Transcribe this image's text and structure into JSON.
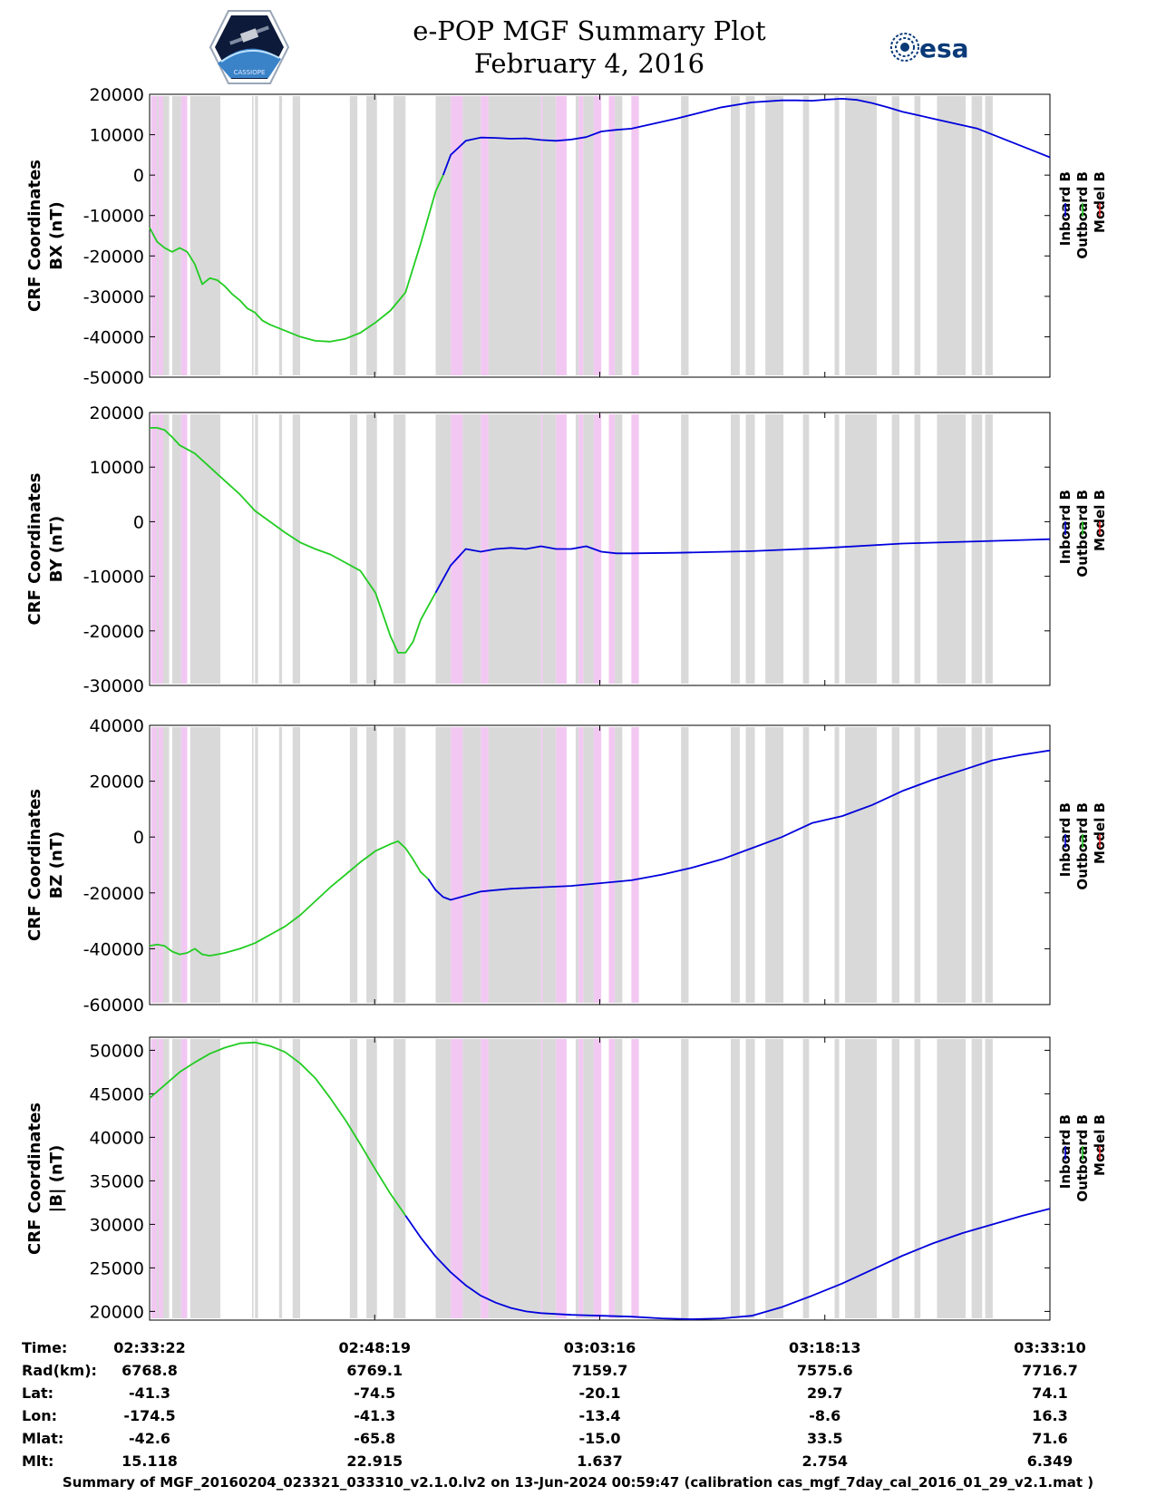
{
  "header": {
    "title_line1": "e-POP MGF Summary Plot",
    "title_line2": "February 4, 2016",
    "logo_left_icon": "cassiope-mission-patch-icon",
    "logo_right_text": "esa",
    "logo_right_icon": "esa-logo-icon"
  },
  "legend": {
    "inboard": "Inboard B",
    "outboard": "Outboard B",
    "model": "Model B",
    "colors": {
      "inboard": "#0000dd",
      "outboard": "#22cc22",
      "model": "#ee2222"
    }
  },
  "colors": {
    "gap_gray": "#d9d9d9",
    "gap_pink": "#f2c8f2",
    "axis": "#000000"
  },
  "footer": {
    "text": "Summary of MGF_20160204_023321_033310_v2.1.0.lv2 on 13-Jun-2024 00:59:47 (calibration cas_mgf_7day_cal_2016_01_29_v2.1.mat )"
  },
  "chart_data": {
    "type": "line",
    "x_range_min": [
      0,
      59.8
    ],
    "shading_min": {
      "gray": [
        [
          0.1,
          1.3
        ],
        [
          1.5,
          2.1
        ],
        [
          2.7,
          4.7
        ],
        [
          6.8,
          6.9
        ],
        [
          7.0,
          7.2
        ],
        [
          8.6,
          8.8
        ],
        [
          9.5,
          10.0
        ],
        [
          13.3,
          13.8
        ],
        [
          14.4,
          15.1
        ],
        [
          16.2,
          17.0
        ],
        [
          19.0,
          20.0
        ],
        [
          20.8,
          22.0
        ],
        [
          22.5,
          26.0
        ],
        [
          26.1,
          27.0
        ],
        [
          28.3,
          28.5
        ],
        [
          28.8,
          29.5
        ],
        [
          30.9,
          31.4
        ],
        [
          35.3,
          35.8
        ],
        [
          38.6,
          39.2
        ],
        [
          39.6,
          40.2
        ],
        [
          40.9,
          42.1
        ],
        [
          43.4,
          43.8
        ],
        [
          45.5,
          45.8
        ],
        [
          46.2,
          48.3
        ],
        [
          49.3,
          49.8
        ],
        [
          50.8,
          51.2
        ],
        [
          52.3,
          54.2
        ],
        [
          54.6,
          55.3
        ],
        [
          55.5,
          56.0
        ]
      ],
      "pink": [
        [
          0.1,
          0.5
        ],
        [
          0.6,
          0.9
        ],
        [
          2.1,
          2.5
        ],
        [
          20.0,
          20.8
        ],
        [
          22.0,
          22.5
        ],
        [
          26.0,
          26.1
        ],
        [
          27.0,
          27.7
        ],
        [
          28.5,
          28.8
        ],
        [
          29.5,
          30.0
        ],
        [
          30.5,
          30.9
        ],
        [
          32.0,
          32.5
        ]
      ]
    },
    "panels": [
      {
        "ylabel_line1": "CRF Coordinates",
        "ylabel_line2": "BX (nT)",
        "ylim": [
          -50000,
          20000
        ],
        "yticks": [
          20000,
          10000,
          0,
          -10000,
          -20000,
          -30000,
          -40000,
          -50000
        ],
        "series": [
          {
            "name": "Outboard B",
            "x": [
              0,
              0.5,
              1,
              1.5,
              2,
              2.5,
              3,
              3.5,
              4,
              4.5,
              5,
              5.5,
              6,
              6.5,
              7,
              7.5,
              8,
              9,
              10,
              11,
              12,
              13,
              14,
              15,
              16,
              17,
              18,
              19,
              19.5
            ],
            "y": [
              -13000,
              -16500,
              -18000,
              -19000,
              -18000,
              -19000,
              -22000,
              -27000,
              -25500,
              -26000,
              -27500,
              -29500,
              -31000,
              -33000,
              -34000,
              -36000,
              -37000,
              -38500,
              -40000,
              -41000,
              -41200,
              -40500,
              -39000,
              -36500,
              -33500,
              -29000,
              -17000,
              -4000,
              0
            ]
          },
          {
            "name": "Inboard B",
            "x": [
              19.5,
              20,
              21,
              22,
              23,
              24,
              25,
              26,
              27,
              28,
              29,
              30,
              31,
              32,
              35,
              38,
              40,
              42,
              43,
              44,
              45,
              46,
              47,
              48,
              49,
              50,
              52,
              55,
              59.8
            ],
            "y": [
              0,
              5000,
              8500,
              9300,
              9200,
              9000,
              9100,
              8700,
              8500,
              8800,
              9400,
              10800,
              11200,
              11500,
              14000,
              16800,
              18000,
              18500,
              18500,
              18400,
              18700,
              18900,
              18600,
              17800,
              16800,
              15700,
              14000,
              11500,
              4400
            ]
          }
        ]
      },
      {
        "ylabel_line1": "CRF Coordinates",
        "ylabel_line2": "BY (nT)",
        "ylim": [
          -30000,
          20000
        ],
        "yticks": [
          20000,
          10000,
          0,
          -10000,
          -20000,
          -30000
        ],
        "series": [
          {
            "name": "Outboard B",
            "x": [
              0,
              0.5,
              1,
              1.5,
              2,
              3,
              4,
              5,
              6,
              7,
              8,
              9,
              10,
              11,
              12,
              13,
              14,
              15,
              15.5,
              16,
              16.5,
              17,
              17.5,
              18,
              18.5,
              19
            ],
            "y": [
              17200,
              17200,
              16800,
              15500,
              14000,
              12500,
              10000,
              7500,
              5000,
              2000,
              0,
              -2000,
              -3800,
              -5000,
              -6000,
              -7500,
              -9000,
              -13000,
              -17000,
              -21000,
              -24000,
              -24000,
              -22000,
              -18000,
              -15500,
              -13000
            ]
          },
          {
            "name": "Inboard B",
            "x": [
              19,
              20,
              21,
              22,
              23,
              24,
              25,
              26,
              27,
              28,
              29,
              30,
              31,
              32,
              35,
              40,
              45,
              50,
              55,
              59.8
            ],
            "y": [
              -13000,
              -8000,
              -5000,
              -5500,
              -5000,
              -4800,
              -5000,
              -4500,
              -5000,
              -5000,
              -4500,
              -5500,
              -5800,
              -5800,
              -5700,
              -5400,
              -4800,
              -4000,
              -3600,
              -3200
            ]
          }
        ]
      },
      {
        "ylabel_line1": "CRF Coordinates",
        "ylabel_line2": "BZ (nT)",
        "ylim": [
          -60000,
          40000
        ],
        "yticks": [
          40000,
          20000,
          0,
          -20000,
          -40000,
          -60000
        ],
        "series": [
          {
            "name": "Outboard B",
            "x": [
              0,
              0.5,
              1,
              1.5,
              2,
              2.5,
              3,
              3.5,
              4,
              4.5,
              5,
              6,
              7,
              8,
              9,
              10,
              11,
              12,
              13,
              14,
              15,
              16,
              16.5,
              17,
              17.5,
              18,
              18.5
            ],
            "y": [
              -39000,
              -38500,
              -39000,
              -41000,
              -42000,
              -41500,
              -40000,
              -42000,
              -42500,
              -42000,
              -41500,
              -40000,
              -38000,
              -35000,
              -32000,
              -28000,
              -23000,
              -18000,
              -13500,
              -9000,
              -5000,
              -2500,
              -1500,
              -4000,
              -8000,
              -12500,
              -15000
            ]
          },
          {
            "name": "Inboard B",
            "x": [
              18.5,
              19,
              19.5,
              20,
              21,
              22,
              23,
              24,
              26,
              28,
              30,
              32,
              34,
              36,
              38,
              40,
              42,
              44,
              46,
              48,
              50,
              52,
              54,
              56,
              58,
              59.8
            ],
            "y": [
              -15000,
              -19000,
              -21500,
              -22500,
              -21000,
              -19500,
              -19000,
              -18500,
              -18000,
              -17500,
              -16500,
              -15500,
              -13500,
              -11000,
              -8000,
              -4000,
              0,
              5000,
              7500,
              11500,
              16500,
              20500,
              24000,
              27500,
              29500,
              31000
            ]
          }
        ]
      },
      {
        "ylabel_line1": "CRF Coordinates",
        "ylabel_line2": "|B| (nT)",
        "ylim": [
          19000,
          51500
        ],
        "yticks": [
          50000,
          45000,
          40000,
          35000,
          30000,
          25000,
          20000
        ],
        "series": [
          {
            "name": "Outboard B",
            "x": [
              0,
              1,
              2,
              3,
              4,
              5,
              6,
              7,
              8,
              9,
              10,
              11,
              12,
              13,
              14,
              15,
              16,
              17
            ],
            "y": [
              44500,
              46000,
              47500,
              48600,
              49600,
              50300,
              50800,
              50900,
              50500,
              49800,
              48500,
              46800,
              44500,
              42000,
              39200,
              36300,
              33500,
              31000
            ]
          },
          {
            "name": "Inboard B",
            "x": [
              17,
              18,
              19,
              20,
              21,
              22,
              23,
              24,
              25,
              26,
              28,
              30,
              32,
              34,
              36,
              38,
              40,
              42,
              44,
              46,
              48,
              50,
              52,
              54,
              56,
              58,
              59.8
            ],
            "y": [
              31000,
              28500,
              26300,
              24500,
              23000,
              21800,
              21000,
              20400,
              20000,
              19800,
              19600,
              19500,
              19400,
              19200,
              19100,
              19200,
              19500,
              20500,
              21800,
              23200,
              24800,
              26400,
              27800,
              29000,
              30000,
              31000,
              31800
            ]
          }
        ]
      }
    ],
    "xticks_min": [
      0,
      14.95,
      29.9,
      44.85,
      59.8
    ],
    "table": {
      "row_labels": [
        "Time:",
        "Rad(km):",
        "Lat:",
        "Lon:",
        "Mlat:",
        "Mlt:"
      ],
      "columns": [
        [
          "02:33:22",
          "6768.8",
          "-41.3",
          "-174.5",
          "-42.6",
          "15.118"
        ],
        [
          "02:48:19",
          "6769.1",
          "-74.5",
          "-41.3",
          "-65.8",
          "22.915"
        ],
        [
          "03:03:16",
          "7159.7",
          "-20.1",
          "-13.4",
          "-15.0",
          "1.637"
        ],
        [
          "03:18:13",
          "7575.6",
          "29.7",
          "-8.6",
          "33.5",
          "2.754"
        ],
        [
          "03:33:10",
          "7716.7",
          "74.1",
          "16.3",
          "71.6",
          "6.349"
        ]
      ]
    }
  }
}
